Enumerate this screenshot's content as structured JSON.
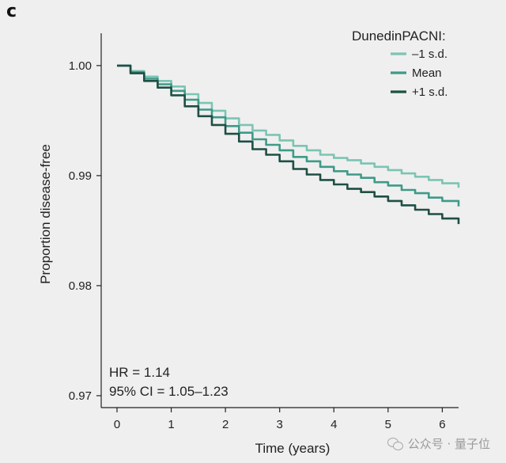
{
  "panel_label": "c",
  "watermark": {
    "text": "公众号 · 量子位",
    "icon": "wechat-icon"
  },
  "chart_data": {
    "type": "line",
    "title": "",
    "xlabel": "Time (years)",
    "ylabel": "Proportion disease-free",
    "xlim": [
      0,
      6.3
    ],
    "ylim": [
      0.9705,
      1.0015
    ],
    "xticks": [
      0,
      1,
      2,
      3,
      4,
      5,
      6
    ],
    "yticks": [
      0.97,
      0.98,
      0.99,
      1.0
    ],
    "ytick_labels": [
      "0.97",
      "0.98",
      "0.99",
      "1.00"
    ],
    "grid": false,
    "legend": {
      "title": "DunedinPACNI:",
      "position": "top-right"
    },
    "annotations": [
      "HR = 1.14",
      "95% CI = 1.05–1.23"
    ],
    "series": [
      {
        "name": "–1 s.d.",
        "color": "#7cc4b3",
        "x": [
          0,
          0.25,
          0.5,
          0.75,
          1.0,
          1.25,
          1.5,
          1.75,
          2.0,
          2.25,
          2.5,
          2.75,
          3.0,
          3.25,
          3.5,
          3.75,
          4.0,
          4.25,
          4.5,
          4.75,
          5.0,
          5.25,
          5.5,
          5.75,
          6.0,
          6.3
        ],
        "y": [
          1.0,
          0.9995,
          0.999,
          0.9986,
          0.9981,
          0.9974,
          0.9966,
          0.9959,
          0.9952,
          0.9946,
          0.9941,
          0.9937,
          0.9932,
          0.9927,
          0.9923,
          0.9919,
          0.9916,
          0.9914,
          0.9911,
          0.9908,
          0.9905,
          0.9902,
          0.9899,
          0.9896,
          0.9893,
          0.9889
        ]
      },
      {
        "name": "Mean",
        "color": "#3f9a88",
        "x": [
          0,
          0.25,
          0.5,
          0.75,
          1.0,
          1.25,
          1.5,
          1.75,
          2.0,
          2.25,
          2.5,
          2.75,
          3.0,
          3.25,
          3.5,
          3.75,
          4.0,
          4.25,
          4.5,
          4.75,
          5.0,
          5.25,
          5.5,
          5.75,
          6.0,
          6.3
        ],
        "y": [
          1.0,
          0.9994,
          0.9988,
          0.9983,
          0.9977,
          0.9969,
          0.996,
          0.9953,
          0.9945,
          0.9939,
          0.9933,
          0.9928,
          0.9923,
          0.9917,
          0.9913,
          0.9908,
          0.9904,
          0.9901,
          0.9898,
          0.9894,
          0.9891,
          0.9887,
          0.9884,
          0.988,
          0.9877,
          0.9872
        ]
      },
      {
        "name": "+1 s.d.",
        "color": "#1f4f44",
        "x": [
          0,
          0.25,
          0.5,
          0.75,
          1.0,
          1.25,
          1.5,
          1.75,
          2.0,
          2.25,
          2.5,
          2.75,
          3.0,
          3.25,
          3.5,
          3.75,
          4.0,
          4.25,
          4.5,
          4.75,
          5.0,
          5.25,
          5.5,
          5.75,
          6.0,
          6.3
        ],
        "y": [
          1.0,
          0.9993,
          0.9986,
          0.998,
          0.9973,
          0.9963,
          0.9954,
          0.9946,
          0.9938,
          0.9931,
          0.9924,
          0.9919,
          0.9913,
          0.9906,
          0.9901,
          0.9896,
          0.9892,
          0.9888,
          0.9885,
          0.9881,
          0.9877,
          0.9873,
          0.9869,
          0.9865,
          0.9861,
          0.9856
        ]
      }
    ]
  }
}
